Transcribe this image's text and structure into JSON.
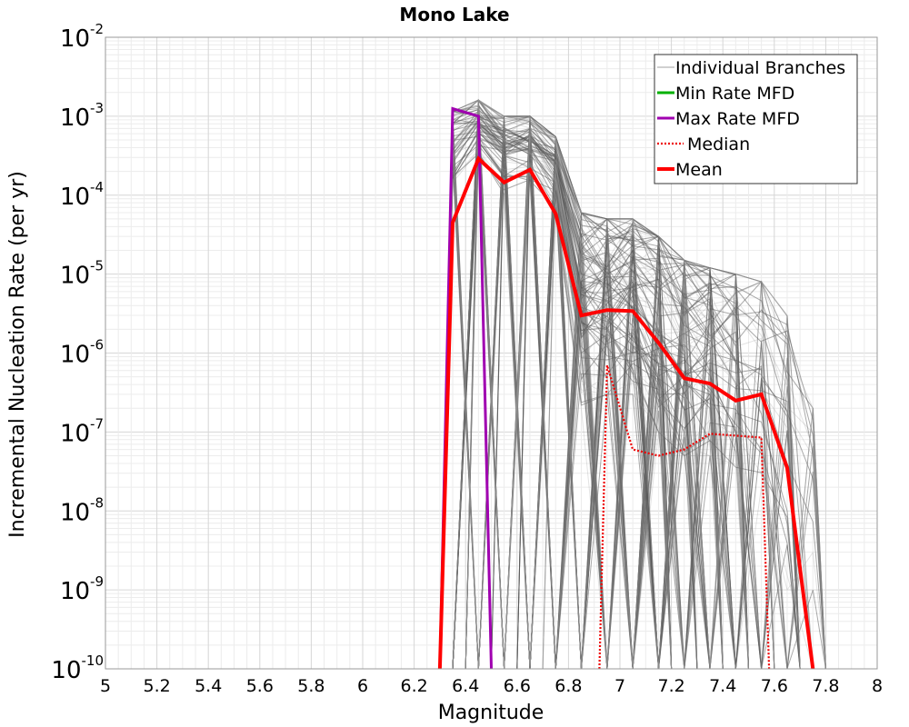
{
  "chart_data": {
    "type": "line",
    "title": "Mono Lake",
    "xlabel": "Magnitude",
    "ylabel": "Incremental Nucleation Rate (per yr)",
    "xlim": [
      5,
      8
    ],
    "ylim_log10": [
      -10,
      -2
    ],
    "xticks": [
      "5",
      "5.2",
      "5.4",
      "5.6",
      "5.8",
      "6",
      "6.2",
      "6.4",
      "6.6",
      "6.8",
      "7",
      "7.2",
      "7.4",
      "7.6",
      "7.8",
      "8"
    ],
    "yticks": [
      {
        "exp": -2,
        "base": "10",
        "sup": "-2"
      },
      {
        "exp": -3,
        "base": "10",
        "sup": "-3"
      },
      {
        "exp": -4,
        "base": "10",
        "sup": "-4"
      },
      {
        "exp": -5,
        "base": "10",
        "sup": "-5"
      },
      {
        "exp": -6,
        "base": "10",
        "sup": "-6"
      },
      {
        "exp": -7,
        "base": "10",
        "sup": "-7"
      },
      {
        "exp": -8,
        "base": "10",
        "sup": "-8"
      },
      {
        "exp": -9,
        "base": "10",
        "sup": "-9"
      },
      {
        "exp": -10,
        "base": "10",
        "sup": "-10"
      }
    ],
    "legend": {
      "placement": "top-right",
      "entries": [
        {
          "label": "Individual Branches",
          "color": "#c0c0c0",
          "style": "solid-thin"
        },
        {
          "label": "Min Rate MFD",
          "color": "#00b000",
          "style": "solid"
        },
        {
          "label": "Max Rate MFD",
          "color": "#a000b0",
          "style": "solid"
        },
        {
          "label": "Median",
          "color": "#ee0000",
          "style": "dotted"
        },
        {
          "label": "Mean",
          "color": "#ff0000",
          "style": "solid-thick"
        }
      ]
    },
    "series": [
      {
        "name": "Max Rate MFD",
        "color": "#a000b0",
        "x": [
          6.3,
          6.35,
          6.45,
          6.5
        ],
        "y": [
          1e-10,
          0.00125,
          0.001,
          1e-10
        ]
      },
      {
        "name": "Median",
        "color": "#ee0000",
        "x": [
          6.92,
          6.95,
          7.05,
          7.15,
          7.25,
          7.35,
          7.45,
          7.55,
          7.58
        ],
        "y": [
          1e-10,
          7e-07,
          6e-08,
          5e-08,
          6e-08,
          9.5e-08,
          9e-08,
          8.5e-08,
          1e-10
        ]
      },
      {
        "name": "Mean",
        "color": "#ff0000",
        "x": [
          6.3,
          6.35,
          6.45,
          6.55,
          6.65,
          6.75,
          6.85,
          6.95,
          7.05,
          7.15,
          7.25,
          7.35,
          7.45,
          7.55,
          7.65,
          7.75
        ],
        "y": [
          1e-10,
          4.5e-05,
          0.00029,
          0.000145,
          0.00021,
          5.8e-05,
          3e-06,
          3.5e-06,
          3.4e-06,
          1.35e-06,
          4.8e-07,
          4.1e-07,
          2.5e-07,
          3e-07,
          3.5e-08,
          1e-10
        ]
      }
    ],
    "branch_envelopes": [
      {
        "x": 6.35,
        "lo": 6e-05,
        "hi": 0.00115
      },
      {
        "x": 6.45,
        "lo": 0.0002,
        "hi": 0.0016
      },
      {
        "x": 6.55,
        "lo": 0.0001,
        "hi": 0.001
      },
      {
        "x": 6.65,
        "lo": 0.00012,
        "hi": 0.001
      },
      {
        "x": 6.75,
        "lo": 5e-05,
        "hi": 0.00055
      },
      {
        "x": 6.85,
        "lo": 2e-07,
        "hi": 6e-05
      },
      {
        "x": 6.95,
        "lo": 3e-07,
        "hi": 5e-05
      },
      {
        "x": 7.05,
        "lo": 3e-07,
        "hi": 5e-05
      },
      {
        "x": 7.15,
        "lo": 1e-07,
        "hi": 3e-05
      },
      {
        "x": 7.25,
        "lo": 5e-08,
        "hi": 1.5e-05
      },
      {
        "x": 7.35,
        "lo": 5e-08,
        "hi": 1.2e-05
      },
      {
        "x": 7.45,
        "lo": 3e-08,
        "hi": 1e-05
      },
      {
        "x": 7.55,
        "lo": 2e-08,
        "hi": 8e-06
      },
      {
        "x": 7.65,
        "lo": 1e-09,
        "hi": 3e-06
      },
      {
        "x": 7.75,
        "lo": 1e-09,
        "hi": 2e-07
      }
    ]
  }
}
